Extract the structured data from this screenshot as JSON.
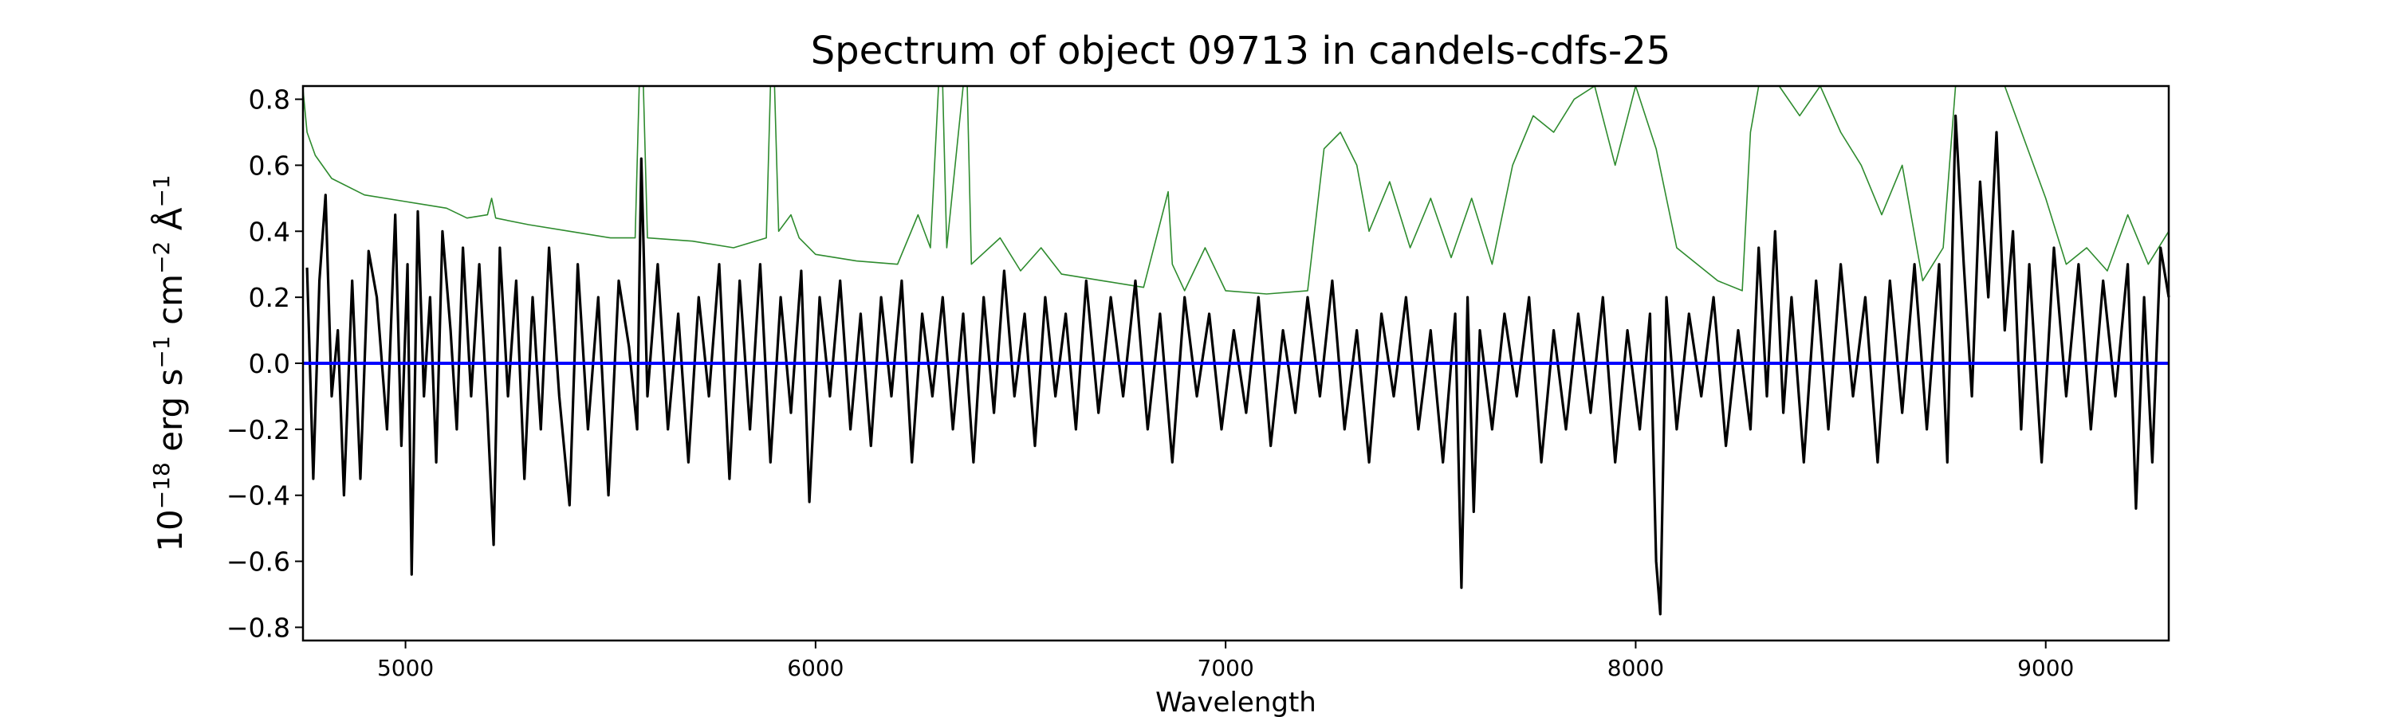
{
  "chart_data": {
    "type": "line",
    "title": "Spectrum of object 09713 in candels-cdfs-25",
    "xlabel": "Wavelength",
    "ylabel": {
      "prefix": "10",
      "exp1": "−18",
      "unit1": " erg s",
      "exp2": "−1",
      "unit2": " cm",
      "exp3": "−2",
      "unit3": " Å",
      "exp4": "−1"
    },
    "xlim": [
      4750,
      9300
    ],
    "ylim": [
      -0.84,
      0.84
    ],
    "xticks": [
      5000,
      6000,
      7000,
      8000,
      9000
    ],
    "xtick_labels": [
      "5000",
      "6000",
      "7000",
      "8000",
      "9000"
    ],
    "yticks": [
      -0.8,
      -0.6,
      -0.4,
      -0.2,
      0.0,
      0.2,
      0.4,
      0.6,
      0.8
    ],
    "ytick_labels": [
      "−0.8",
      "−0.6",
      "−0.4",
      "−0.2",
      "0.0",
      "0.2",
      "0.4",
      "0.6",
      "0.8"
    ],
    "grid": false,
    "colors": {
      "flux": "#000000",
      "error": "#2e8b2e",
      "zero": "#0000ff"
    },
    "series": [
      {
        "key": "error",
        "points": [
          [
            4750,
            0.83
          ],
          [
            4760,
            0.7
          ],
          [
            4780,
            0.63
          ],
          [
            4820,
            0.56
          ],
          [
            4900,
            0.51
          ],
          [
            5000,
            0.49
          ],
          [
            5100,
            0.47
          ],
          [
            5150,
            0.44
          ],
          [
            5200,
            0.45
          ],
          [
            5210,
            0.5
          ],
          [
            5220,
            0.44
          ],
          [
            5300,
            0.42
          ],
          [
            5400,
            0.4
          ],
          [
            5500,
            0.38
          ],
          [
            5560,
            0.38
          ],
          [
            5570,
            0.84
          ],
          [
            5580,
            0.84
          ],
          [
            5590,
            0.38
          ],
          [
            5700,
            0.37
          ],
          [
            5800,
            0.35
          ],
          [
            5880,
            0.38
          ],
          [
            5890,
            0.84
          ],
          [
            5900,
            0.84
          ],
          [
            5910,
            0.4
          ],
          [
            5940,
            0.45
          ],
          [
            5960,
            0.38
          ],
          [
            6000,
            0.33
          ],
          [
            6100,
            0.31
          ],
          [
            6200,
            0.3
          ],
          [
            6250,
            0.45
          ],
          [
            6280,
            0.35
          ],
          [
            6300,
            0.84
          ],
          [
            6310,
            0.84
          ],
          [
            6320,
            0.35
          ],
          [
            6360,
            0.84
          ],
          [
            6370,
            0.84
          ],
          [
            6380,
            0.3
          ],
          [
            6450,
            0.38
          ],
          [
            6500,
            0.28
          ],
          [
            6550,
            0.35
          ],
          [
            6600,
            0.27
          ],
          [
            6700,
            0.25
          ],
          [
            6800,
            0.23
          ],
          [
            6860,
            0.52
          ],
          [
            6870,
            0.3
          ],
          [
            6900,
            0.22
          ],
          [
            6950,
            0.35
          ],
          [
            7000,
            0.22
          ],
          [
            7100,
            0.21
          ],
          [
            7200,
            0.22
          ],
          [
            7240,
            0.65
          ],
          [
            7280,
            0.7
          ],
          [
            7320,
            0.6
          ],
          [
            7350,
            0.4
          ],
          [
            7400,
            0.55
          ],
          [
            7450,
            0.35
          ],
          [
            7500,
            0.5
          ],
          [
            7550,
            0.32
          ],
          [
            7600,
            0.5
          ],
          [
            7650,
            0.3
          ],
          [
            7700,
            0.6
          ],
          [
            7750,
            0.75
          ],
          [
            7800,
            0.7
          ],
          [
            7850,
            0.8
          ],
          [
            7900,
            0.84
          ],
          [
            7950,
            0.6
          ],
          [
            8000,
            0.84
          ],
          [
            8050,
            0.65
          ],
          [
            8100,
            0.35
          ],
          [
            8200,
            0.25
          ],
          [
            8260,
            0.22
          ],
          [
            8280,
            0.7
          ],
          [
            8300,
            0.84
          ],
          [
            8350,
            0.84
          ],
          [
            8400,
            0.75
          ],
          [
            8450,
            0.84
          ],
          [
            8500,
            0.7
          ],
          [
            8550,
            0.6
          ],
          [
            8600,
            0.45
          ],
          [
            8650,
            0.6
          ],
          [
            8700,
            0.25
          ],
          [
            8750,
            0.35
          ],
          [
            8780,
            0.84
          ],
          [
            8850,
            0.84
          ],
          [
            8900,
            0.84
          ],
          [
            9000,
            0.5
          ],
          [
            9050,
            0.3
          ],
          [
            9100,
            0.35
          ],
          [
            9150,
            0.28
          ],
          [
            9200,
            0.45
          ],
          [
            9250,
            0.3
          ],
          [
            9300,
            0.4
          ]
        ]
      },
      {
        "key": "flux",
        "points": [
          [
            4760,
            0.29
          ],
          [
            4775,
            -0.35
          ],
          [
            4790,
            0.25
          ],
          [
            4805,
            0.51
          ],
          [
            4820,
            -0.1
          ],
          [
            4835,
            0.1
          ],
          [
            4850,
            -0.4
          ],
          [
            4870,
            0.25
          ],
          [
            4890,
            -0.35
          ],
          [
            4910,
            0.34
          ],
          [
            4930,
            0.2
          ],
          [
            4955,
            -0.2
          ],
          [
            4975,
            0.45
          ],
          [
            4990,
            -0.25
          ],
          [
            5005,
            0.3
          ],
          [
            5015,
            -0.64
          ],
          [
            5030,
            0.46
          ],
          [
            5045,
            -0.1
          ],
          [
            5060,
            0.2
          ],
          [
            5075,
            -0.3
          ],
          [
            5090,
            0.4
          ],
          [
            5110,
            0.1
          ],
          [
            5125,
            -0.2
          ],
          [
            5140,
            0.35
          ],
          [
            5160,
            -0.1
          ],
          [
            5180,
            0.3
          ],
          [
            5200,
            -0.15
          ],
          [
            5215,
            -0.55
          ],
          [
            5230,
            0.35
          ],
          [
            5250,
            -0.1
          ],
          [
            5270,
            0.25
          ],
          [
            5290,
            -0.35
          ],
          [
            5310,
            0.2
          ],
          [
            5330,
            -0.2
          ],
          [
            5350,
            0.35
          ],
          [
            5375,
            -0.1
          ],
          [
            5400,
            -0.43
          ],
          [
            5420,
            0.3
          ],
          [
            5445,
            -0.2
          ],
          [
            5470,
            0.2
          ],
          [
            5495,
            -0.4
          ],
          [
            5520,
            0.25
          ],
          [
            5545,
            0.05
          ],
          [
            5565,
            -0.2
          ],
          [
            5575,
            0.62
          ],
          [
            5590,
            -0.1
          ],
          [
            5615,
            0.3
          ],
          [
            5640,
            -0.2
          ],
          [
            5665,
            0.15
          ],
          [
            5690,
            -0.3
          ],
          [
            5715,
            0.2
          ],
          [
            5740,
            -0.1
          ],
          [
            5765,
            0.3
          ],
          [
            5790,
            -0.35
          ],
          [
            5815,
            0.25
          ],
          [
            5840,
            -0.2
          ],
          [
            5865,
            0.3
          ],
          [
            5890,
            -0.3
          ],
          [
            5915,
            0.2
          ],
          [
            5940,
            -0.15
          ],
          [
            5965,
            0.28
          ],
          [
            5985,
            -0.42
          ],
          [
            6010,
            0.2
          ],
          [
            6035,
            -0.1
          ],
          [
            6060,
            0.25
          ],
          [
            6085,
            -0.2
          ],
          [
            6110,
            0.15
          ],
          [
            6135,
            -0.25
          ],
          [
            6160,
            0.2
          ],
          [
            6185,
            -0.1
          ],
          [
            6210,
            0.25
          ],
          [
            6235,
            -0.3
          ],
          [
            6260,
            0.15
          ],
          [
            6285,
            -0.1
          ],
          [
            6310,
            0.2
          ],
          [
            6335,
            -0.2
          ],
          [
            6360,
            0.15
          ],
          [
            6385,
            -0.3
          ],
          [
            6410,
            0.2
          ],
          [
            6435,
            -0.15
          ],
          [
            6460,
            0.28
          ],
          [
            6485,
            -0.1
          ],
          [
            6510,
            0.15
          ],
          [
            6535,
            -0.25
          ],
          [
            6560,
            0.2
          ],
          [
            6585,
            -0.1
          ],
          [
            6610,
            0.15
          ],
          [
            6635,
            -0.2
          ],
          [
            6660,
            0.25
          ],
          [
            6690,
            -0.15
          ],
          [
            6720,
            0.2
          ],
          [
            6750,
            -0.1
          ],
          [
            6780,
            0.25
          ],
          [
            6810,
            -0.2
          ],
          [
            6840,
            0.15
          ],
          [
            6870,
            -0.3
          ],
          [
            6900,
            0.2
          ],
          [
            6930,
            -0.1
          ],
          [
            6960,
            0.15
          ],
          [
            6990,
            -0.2
          ],
          [
            7020,
            0.1
          ],
          [
            7050,
            -0.15
          ],
          [
            7080,
            0.2
          ],
          [
            7110,
            -0.25
          ],
          [
            7140,
            0.1
          ],
          [
            7170,
            -0.15
          ],
          [
            7200,
            0.2
          ],
          [
            7230,
            -0.1
          ],
          [
            7260,
            0.25
          ],
          [
            7290,
            -0.2
          ],
          [
            7320,
            0.1
          ],
          [
            7350,
            -0.3
          ],
          [
            7380,
            0.15
          ],
          [
            7410,
            -0.1
          ],
          [
            7440,
            0.2
          ],
          [
            7470,
            -0.2
          ],
          [
            7500,
            0.1
          ],
          [
            7530,
            -0.3
          ],
          [
            7560,
            0.15
          ],
          [
            7575,
            -0.68
          ],
          [
            7590,
            0.2
          ],
          [
            7605,
            -0.45
          ],
          [
            7620,
            0.1
          ],
          [
            7650,
            -0.2
          ],
          [
            7680,
            0.15
          ],
          [
            7710,
            -0.1
          ],
          [
            7740,
            0.2
          ],
          [
            7770,
            -0.3
          ],
          [
            7800,
            0.1
          ],
          [
            7830,
            -0.2
          ],
          [
            7860,
            0.15
          ],
          [
            7890,
            -0.15
          ],
          [
            7920,
            0.2
          ],
          [
            7950,
            -0.3
          ],
          [
            7980,
            0.1
          ],
          [
            8010,
            -0.2
          ],
          [
            8035,
            0.15
          ],
          [
            8050,
            -0.6
          ],
          [
            8060,
            -0.76
          ],
          [
            8075,
            0.2
          ],
          [
            8100,
            -0.2
          ],
          [
            8130,
            0.15
          ],
          [
            8160,
            -0.1
          ],
          [
            8190,
            0.2
          ],
          [
            8220,
            -0.25
          ],
          [
            8250,
            0.1
          ],
          [
            8280,
            -0.2
          ],
          [
            8300,
            0.35
          ],
          [
            8320,
            -0.1
          ],
          [
            8340,
            0.4
          ],
          [
            8360,
            -0.15
          ],
          [
            8380,
            0.2
          ],
          [
            8410,
            -0.3
          ],
          [
            8440,
            0.25
          ],
          [
            8470,
            -0.2
          ],
          [
            8500,
            0.3
          ],
          [
            8530,
            -0.1
          ],
          [
            8560,
            0.2
          ],
          [
            8590,
            -0.3
          ],
          [
            8620,
            0.25
          ],
          [
            8650,
            -0.15
          ],
          [
            8680,
            0.3
          ],
          [
            8710,
            -0.2
          ],
          [
            8740,
            0.3
          ],
          [
            8760,
            -0.3
          ],
          [
            8780,
            0.75
          ],
          [
            8800,
            0.3
          ],
          [
            8820,
            -0.1
          ],
          [
            8840,
            0.55
          ],
          [
            8860,
            0.2
          ],
          [
            8880,
            0.7
          ],
          [
            8900,
            0.1
          ],
          [
            8920,
            0.4
          ],
          [
            8940,
            -0.2
          ],
          [
            8960,
            0.3
          ],
          [
            8990,
            -0.3
          ],
          [
            9020,
            0.35
          ],
          [
            9050,
            -0.1
          ],
          [
            9080,
            0.3
          ],
          [
            9110,
            -0.2
          ],
          [
            9140,
            0.25
          ],
          [
            9170,
            -0.1
          ],
          [
            9200,
            0.3
          ],
          [
            9220,
            -0.44
          ],
          [
            9240,
            0.2
          ],
          [
            9260,
            -0.3
          ],
          [
            9280,
            0.35
          ],
          [
            9300,
            0.2
          ]
        ]
      }
    ],
    "zero_line": 0.0
  }
}
